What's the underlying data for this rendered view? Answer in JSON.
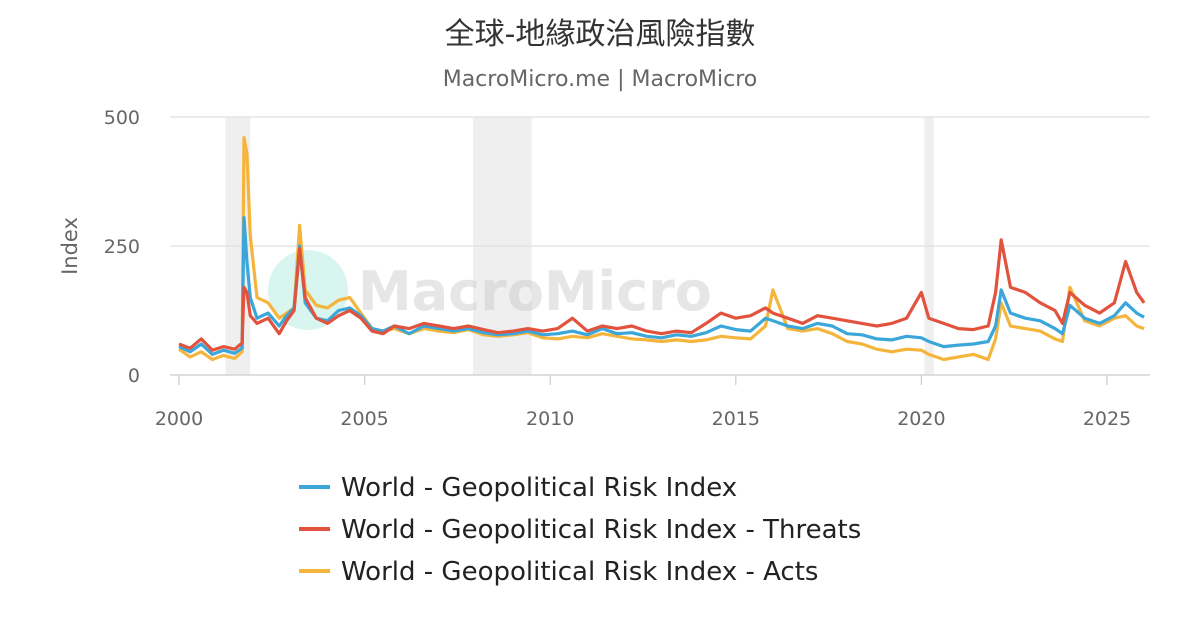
{
  "chart_data": {
    "type": "line",
    "title": "全球-地緣政治風險指數",
    "subtitle": "MacroMicro.me | MacroMicro",
    "watermark": "MacroMicro",
    "ylabel": "Index",
    "ylim": [
      0,
      500
    ],
    "xlim": [
      2000,
      2026.2
    ],
    "yticks": [
      0,
      250,
      500
    ],
    "xticks": [
      2000,
      2005,
      2010,
      2015,
      2020,
      2025
    ],
    "grid": true,
    "legend_position": "bottom",
    "recession_bands": [
      [
        2001.25,
        2001.92
      ],
      [
        2007.92,
        2009.5
      ],
      [
        2020.08,
        2020.33
      ]
    ],
    "series": [
      {
        "name": "World - Geopolitical Risk Index",
        "color": "#3aa6d9",
        "points": [
          [
            2000.0,
            55
          ],
          [
            2000.3,
            45
          ],
          [
            2000.6,
            60
          ],
          [
            2000.9,
            40
          ],
          [
            2001.2,
            48
          ],
          [
            2001.5,
            42
          ],
          [
            2001.7,
            52
          ],
          [
            2001.75,
            305
          ],
          [
            2001.83,
            220
          ],
          [
            2001.92,
            150
          ],
          [
            2002.1,
            110
          ],
          [
            2002.4,
            120
          ],
          [
            2002.7,
            95
          ],
          [
            2002.9,
            115
          ],
          [
            2003.1,
            130
          ],
          [
            2003.25,
            250
          ],
          [
            2003.4,
            140
          ],
          [
            2003.7,
            110
          ],
          [
            2004.0,
            105
          ],
          [
            2004.3,
            125
          ],
          [
            2004.6,
            130
          ],
          [
            2004.9,
            115
          ],
          [
            2005.2,
            90
          ],
          [
            2005.5,
            85
          ],
          [
            2005.8,
            95
          ],
          [
            2006.2,
            80
          ],
          [
            2006.6,
            95
          ],
          [
            2007.0,
            90
          ],
          [
            2007.4,
            85
          ],
          [
            2007.8,
            90
          ],
          [
            2008.2,
            82
          ],
          [
            2008.6,
            78
          ],
          [
            2009.0,
            80
          ],
          [
            2009.4,
            85
          ],
          [
            2009.8,
            78
          ],
          [
            2010.2,
            80
          ],
          [
            2010.6,
            85
          ],
          [
            2011.0,
            78
          ],
          [
            2011.4,
            90
          ],
          [
            2011.8,
            80
          ],
          [
            2012.2,
            82
          ],
          [
            2012.6,
            75
          ],
          [
            2013.0,
            72
          ],
          [
            2013.4,
            78
          ],
          [
            2013.8,
            75
          ],
          [
            2014.2,
            82
          ],
          [
            2014.6,
            95
          ],
          [
            2015.0,
            88
          ],
          [
            2015.4,
            85
          ],
          [
            2015.8,
            110
          ],
          [
            2016.0,
            105
          ],
          [
            2016.4,
            95
          ],
          [
            2016.8,
            90
          ],
          [
            2017.2,
            100
          ],
          [
            2017.6,
            95
          ],
          [
            2018.0,
            80
          ],
          [
            2018.4,
            78
          ],
          [
            2018.8,
            70
          ],
          [
            2019.2,
            68
          ],
          [
            2019.6,
            75
          ],
          [
            2020.0,
            72
          ],
          [
            2020.2,
            65
          ],
          [
            2020.6,
            55
          ],
          [
            2021.0,
            58
          ],
          [
            2021.4,
            60
          ],
          [
            2021.8,
            65
          ],
          [
            2022.0,
            95
          ],
          [
            2022.15,
            165
          ],
          [
            2022.4,
            120
          ],
          [
            2022.8,
            110
          ],
          [
            2023.2,
            105
          ],
          [
            2023.6,
            90
          ],
          [
            2023.8,
            80
          ],
          [
            2024.0,
            135
          ],
          [
            2024.4,
            110
          ],
          [
            2024.8,
            100
          ],
          [
            2025.2,
            115
          ],
          [
            2025.5,
            140
          ],
          [
            2025.8,
            120
          ],
          [
            2026.0,
            112
          ]
        ]
      },
      {
        "name": "World - Geopolitical Risk Index - Threats",
        "color": "#e2533e",
        "points": [
          [
            2000.0,
            60
          ],
          [
            2000.3,
            52
          ],
          [
            2000.6,
            70
          ],
          [
            2000.9,
            48
          ],
          [
            2001.2,
            55
          ],
          [
            2001.5,
            50
          ],
          [
            2001.7,
            62
          ],
          [
            2001.75,
            170
          ],
          [
            2001.83,
            160
          ],
          [
            2001.92,
            115
          ],
          [
            2002.1,
            100
          ],
          [
            2002.4,
            110
          ],
          [
            2002.7,
            80
          ],
          [
            2002.9,
            105
          ],
          [
            2003.1,
            125
          ],
          [
            2003.25,
            245
          ],
          [
            2003.4,
            150
          ],
          [
            2003.7,
            110
          ],
          [
            2004.0,
            100
          ],
          [
            2004.3,
            115
          ],
          [
            2004.6,
            125
          ],
          [
            2004.9,
            110
          ],
          [
            2005.2,
            85
          ],
          [
            2005.5,
            80
          ],
          [
            2005.8,
            95
          ],
          [
            2006.2,
            90
          ],
          [
            2006.6,
            100
          ],
          [
            2007.0,
            95
          ],
          [
            2007.4,
            90
          ],
          [
            2007.8,
            95
          ],
          [
            2008.2,
            88
          ],
          [
            2008.6,
            82
          ],
          [
            2009.0,
            85
          ],
          [
            2009.4,
            90
          ],
          [
            2009.8,
            85
          ],
          [
            2010.2,
            90
          ],
          [
            2010.6,
            110
          ],
          [
            2011.0,
            85
          ],
          [
            2011.4,
            95
          ],
          [
            2011.8,
            90
          ],
          [
            2012.2,
            95
          ],
          [
            2012.6,
            85
          ],
          [
            2013.0,
            80
          ],
          [
            2013.4,
            85
          ],
          [
            2013.8,
            82
          ],
          [
            2014.2,
            100
          ],
          [
            2014.6,
            120
          ],
          [
            2015.0,
            110
          ],
          [
            2015.4,
            115
          ],
          [
            2015.8,
            130
          ],
          [
            2016.0,
            120
          ],
          [
            2016.4,
            110
          ],
          [
            2016.8,
            100
          ],
          [
            2017.2,
            115
          ],
          [
            2017.6,
            110
          ],
          [
            2018.0,
            105
          ],
          [
            2018.4,
            100
          ],
          [
            2018.8,
            95
          ],
          [
            2019.2,
            100
          ],
          [
            2019.6,
            110
          ],
          [
            2020.0,
            160
          ],
          [
            2020.2,
            110
          ],
          [
            2020.6,
            100
          ],
          [
            2021.0,
            90
          ],
          [
            2021.4,
            88
          ],
          [
            2021.8,
            95
          ],
          [
            2022.0,
            160
          ],
          [
            2022.15,
            262
          ],
          [
            2022.4,
            170
          ],
          [
            2022.8,
            160
          ],
          [
            2023.2,
            140
          ],
          [
            2023.6,
            125
          ],
          [
            2023.8,
            100
          ],
          [
            2024.0,
            160
          ],
          [
            2024.4,
            135
          ],
          [
            2024.8,
            120
          ],
          [
            2025.2,
            140
          ],
          [
            2025.5,
            220
          ],
          [
            2025.8,
            160
          ],
          [
            2026.0,
            140
          ]
        ]
      },
      {
        "name": "World - Geopolitical Risk Index - Acts",
        "color": "#f5b53c",
        "points": [
          [
            2000.0,
            50
          ],
          [
            2000.3,
            35
          ],
          [
            2000.6,
            45
          ],
          [
            2000.9,
            30
          ],
          [
            2001.2,
            38
          ],
          [
            2001.5,
            32
          ],
          [
            2001.7,
            45
          ],
          [
            2001.75,
            460
          ],
          [
            2001.83,
            430
          ],
          [
            2001.92,
            270
          ],
          [
            2002.1,
            150
          ],
          [
            2002.4,
            140
          ],
          [
            2002.7,
            110
          ],
          [
            2002.9,
            120
          ],
          [
            2003.1,
            130
          ],
          [
            2003.25,
            290
          ],
          [
            2003.4,
            165
          ],
          [
            2003.7,
            135
          ],
          [
            2004.0,
            130
          ],
          [
            2004.3,
            145
          ],
          [
            2004.6,
            150
          ],
          [
            2004.9,
            120
          ],
          [
            2005.2,
            90
          ],
          [
            2005.5,
            85
          ],
          [
            2005.8,
            90
          ],
          [
            2006.2,
            80
          ],
          [
            2006.6,
            90
          ],
          [
            2007.0,
            85
          ],
          [
            2007.4,
            82
          ],
          [
            2007.8,
            88
          ],
          [
            2008.2,
            78
          ],
          [
            2008.6,
            75
          ],
          [
            2009.0,
            78
          ],
          [
            2009.4,
            82
          ],
          [
            2009.8,
            72
          ],
          [
            2010.2,
            70
          ],
          [
            2010.6,
            75
          ],
          [
            2011.0,
            72
          ],
          [
            2011.4,
            80
          ],
          [
            2011.8,
            75
          ],
          [
            2012.2,
            70
          ],
          [
            2012.6,
            68
          ],
          [
            2013.0,
            65
          ],
          [
            2013.4,
            68
          ],
          [
            2013.8,
            65
          ],
          [
            2014.2,
            68
          ],
          [
            2014.6,
            75
          ],
          [
            2015.0,
            72
          ],
          [
            2015.4,
            70
          ],
          [
            2015.8,
            95
          ],
          [
            2016.0,
            165
          ],
          [
            2016.4,
            90
          ],
          [
            2016.8,
            85
          ],
          [
            2017.2,
            90
          ],
          [
            2017.6,
            80
          ],
          [
            2018.0,
            65
          ],
          [
            2018.4,
            60
          ],
          [
            2018.8,
            50
          ],
          [
            2019.2,
            45
          ],
          [
            2019.6,
            50
          ],
          [
            2020.0,
            48
          ],
          [
            2020.2,
            40
          ],
          [
            2020.6,
            30
          ],
          [
            2021.0,
            35
          ],
          [
            2021.4,
            40
          ],
          [
            2021.8,
            30
          ],
          [
            2022.0,
            70
          ],
          [
            2022.15,
            140
          ],
          [
            2022.4,
            95
          ],
          [
            2022.8,
            90
          ],
          [
            2023.2,
            85
          ],
          [
            2023.6,
            70
          ],
          [
            2023.8,
            65
          ],
          [
            2024.0,
            170
          ],
          [
            2024.4,
            105
          ],
          [
            2024.8,
            95
          ],
          [
            2025.2,
            110
          ],
          [
            2025.5,
            115
          ],
          [
            2025.8,
            95
          ],
          [
            2026.0,
            90
          ]
        ]
      }
    ]
  }
}
